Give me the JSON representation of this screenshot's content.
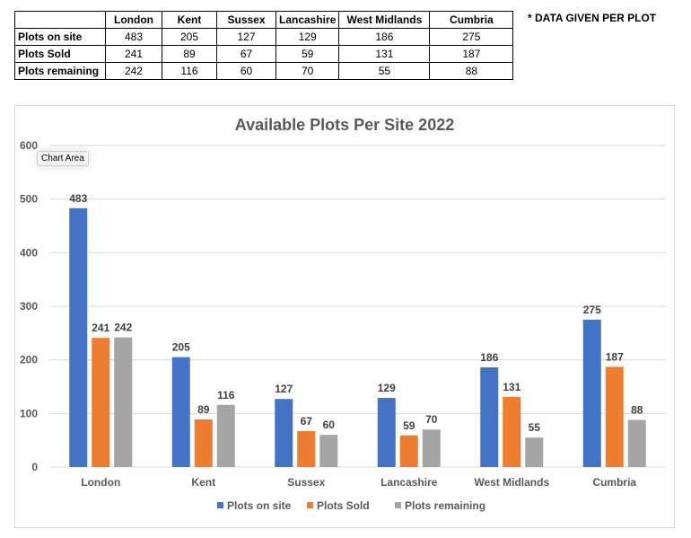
{
  "table": {
    "columns": [
      "London",
      "Kent",
      "Sussex",
      "Lancashire",
      "West Midlands",
      "Cumbria"
    ],
    "rows": [
      {
        "label": "Plots on site",
        "values": [
          "483",
          "205",
          "127",
          "129",
          "186",
          "275"
        ]
      },
      {
        "label": "Plots Sold",
        "values": [
          "241",
          "89",
          "67",
          "59",
          "131",
          "187"
        ]
      },
      {
        "label": "Plots remaining",
        "values": [
          "242",
          "116",
          "60",
          "70",
          "55",
          "88"
        ]
      }
    ]
  },
  "note": "* DATA GIVEN PER PLOT",
  "tooltip": "Chart Area",
  "chart_data": {
    "type": "bar",
    "title": "Available Plots Per Site 2022",
    "categories": [
      "London",
      "Kent",
      "Sussex",
      "Lancashire",
      "West Midlands",
      "Cumbria"
    ],
    "series": [
      {
        "name": "Plots on site",
        "color": "#4472c4",
        "values": [
          483,
          205,
          127,
          129,
          186,
          275
        ]
      },
      {
        "name": "Plots Sold",
        "color": "#ed7d31",
        "values": [
          241,
          89,
          67,
          59,
          131,
          187
        ]
      },
      {
        "name": "Plots remaining",
        "color": "#a5a5a5",
        "values": [
          242,
          116,
          60,
          70,
          55,
          88
        ]
      }
    ],
    "ylim": [
      0,
      600
    ],
    "yticks": [
      0,
      100,
      200,
      300,
      400,
      500,
      600
    ],
    "grid": true,
    "legend": "bottom",
    "data_labels": true
  }
}
